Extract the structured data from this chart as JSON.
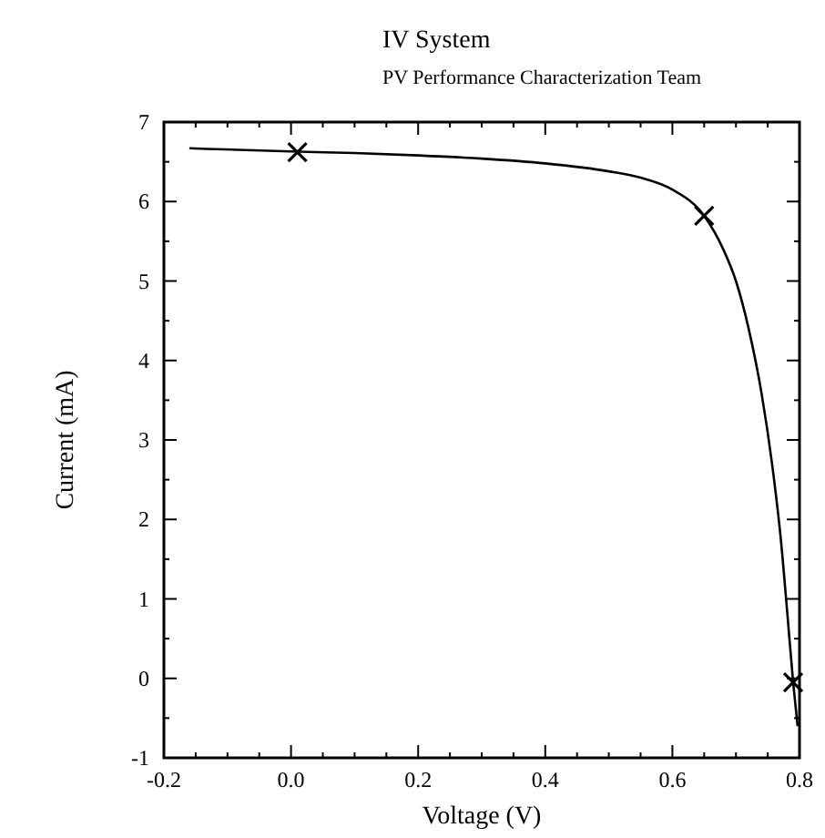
{
  "chart_data": {
    "type": "line",
    "title": "IV System",
    "subtitle": "PV Performance Characterization Team",
    "xlabel": "Voltage (V)",
    "ylabel": "Current (mA)",
    "xlim": [
      -0.2,
      0.8
    ],
    "ylim": [
      -1,
      7
    ],
    "xticks": [
      -0.2,
      {
        "value": -0.15,
        "label": null
      },
      {
        "value": -0.1,
        "label": null
      },
      {
        "value": -0.05,
        "label": null
      },
      {
        "value": 0,
        "label": "0.0"
      },
      {
        "value": 0.05,
        "label": null
      },
      {
        "value": 0.1,
        "label": null
      },
      {
        "value": 0.15,
        "label": null
      },
      0.2,
      {
        "value": 0.25,
        "label": null
      },
      {
        "value": 0.3,
        "label": null
      },
      {
        "value": 0.35,
        "label": null
      },
      0.4,
      {
        "value": 0.45,
        "label": null
      },
      {
        "value": 0.5,
        "label": null
      },
      {
        "value": 0.55,
        "label": null
      },
      0.6,
      {
        "value": 0.65,
        "label": null
      },
      {
        "value": 0.7,
        "label": null
      },
      {
        "value": 0.75,
        "label": null
      },
      0.8
    ],
    "yticks": [
      -1,
      {
        "value": -0.5,
        "label": null
      },
      0,
      {
        "value": 0.5,
        "label": null
      },
      1,
      {
        "value": 1.5,
        "label": null
      },
      2,
      {
        "value": 2.5,
        "label": null
      },
      3,
      {
        "value": 3.5,
        "label": null
      },
      4,
      {
        "value": 4.5,
        "label": null
      },
      5,
      {
        "value": 5.5,
        "label": null
      },
      6,
      {
        "value": 6.5,
        "label": null
      },
      7
    ],
    "grid": false,
    "series": [
      {
        "color": "#000000",
        "marker": "none",
        "line_style": "solid",
        "x": [
          -0.16,
          0,
          0.1,
          0.2,
          0.3,
          0.4,
          0.5,
          0.55,
          0.6,
          0.65,
          0.68,
          0.7,
          0.72,
          0.74,
          0.76,
          0.77,
          0.78,
          0.79,
          0.797
        ],
        "values": [
          6.67,
          6.63,
          6.61,
          6.58,
          6.54,
          6.48,
          6.38,
          6.3,
          6.15,
          5.82,
          5.4,
          5.0,
          4.4,
          3.6,
          2.5,
          1.8,
          0.9,
          -0.05,
          -0.6
        ]
      },
      {
        "type": "scatter",
        "color": "#000000",
        "marker": "cross",
        "x": [
          0.01,
          0.65,
          0.79
        ],
        "values": [
          6.62,
          5.82,
          -0.05
        ]
      }
    ]
  }
}
